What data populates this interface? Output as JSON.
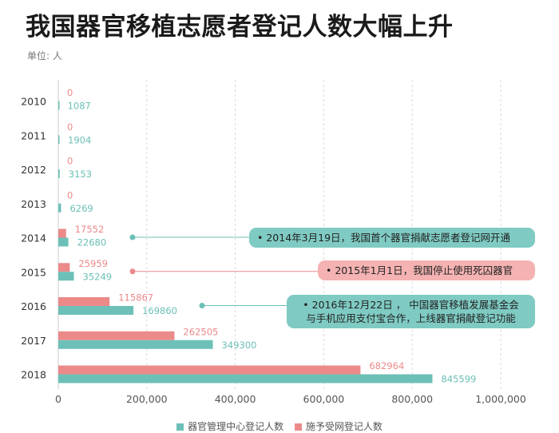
{
  "title": "我国器官移植志愿者登记人数大幅上升",
  "unit": "单位: 人",
  "colors": {
    "teal": "#6cc0b7",
    "pink": "#ec8a8a",
    "grid": "#d9d9d9"
  },
  "chart_data": {
    "type": "bar",
    "orientation": "horizontal",
    "categories": [
      "2010",
      "2011",
      "2012",
      "2013",
      "2014",
      "2015",
      "2016",
      "2017",
      "2018"
    ],
    "series": [
      {
        "name": "器官管理中心登记人数",
        "color": "#6cc0b7",
        "values": [
          1087,
          1904,
          3153,
          6269,
          22680,
          35249,
          169860,
          349300,
          845599
        ]
      },
      {
        "name": "施予受网登记人数",
        "color": "#ec8a8a",
        "values": [
          0,
          0,
          0,
          0,
          17552,
          25959,
          115867,
          262505,
          682964
        ]
      }
    ],
    "xlim": [
      0,
      1000000
    ],
    "xticks": [
      "0",
      "200,000",
      "400,000",
      "600,000",
      "800,000",
      "1,000,000"
    ],
    "grid": true,
    "legend": "bottom",
    "annotations": [
      {
        "year": "2014",
        "text": "• 2014年3月19日，我国首个器官捐献志愿者登记网开通",
        "style": "teal"
      },
      {
        "year": "2015",
        "text": "• 2015年1月1日，我国停止使用死囚器官",
        "style": "pink"
      },
      {
        "year": "2016",
        "text": "• 2016年12月22日 ， 中国器官移植发展基金会",
        "text2": "与手机应用支付宝合作，上线器官捐献登记功能",
        "style": "teal"
      }
    ]
  }
}
